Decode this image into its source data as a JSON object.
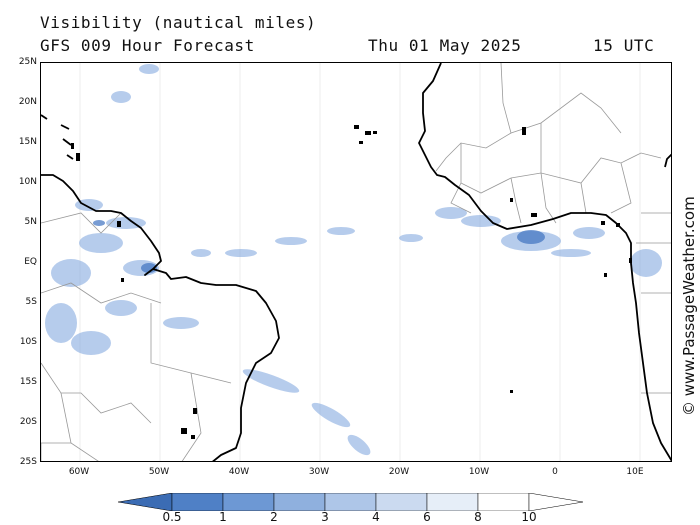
{
  "header": {
    "title": "Visibility (nautical miles)",
    "forecast": "GFS 009 Hour Forecast",
    "date": "Thu 01 May 2025",
    "time": "15 UTC"
  },
  "map": {
    "lat_labels": [
      "25N",
      "20N",
      "15N",
      "10N",
      "5N",
      "EQ",
      "5S",
      "10S",
      "15S",
      "20S",
      "25S"
    ],
    "lon_labels": [
      "60W",
      "50W",
      "40W",
      "30W",
      "20W",
      "10W",
      "0",
      "10E"
    ],
    "region": "Tropical Atlantic Ocean between South America and West Africa",
    "land_color": "#ffffff",
    "coast_color": "#000000",
    "border_color": "#999999",
    "low_visibility_color": "#6a95d6"
  },
  "legend": {
    "labels": [
      "0.5",
      "1",
      "2",
      "3",
      "4",
      "6",
      "8",
      "10"
    ],
    "colors": [
      "#3b6cb4",
      "#4f80c6",
      "#6d98d4",
      "#8fb0de",
      "#aec6e8",
      "#cbdaf0",
      "#e6eef8",
      "#ffffff"
    ]
  },
  "watermark": "© www.PassageWeather.com"
}
